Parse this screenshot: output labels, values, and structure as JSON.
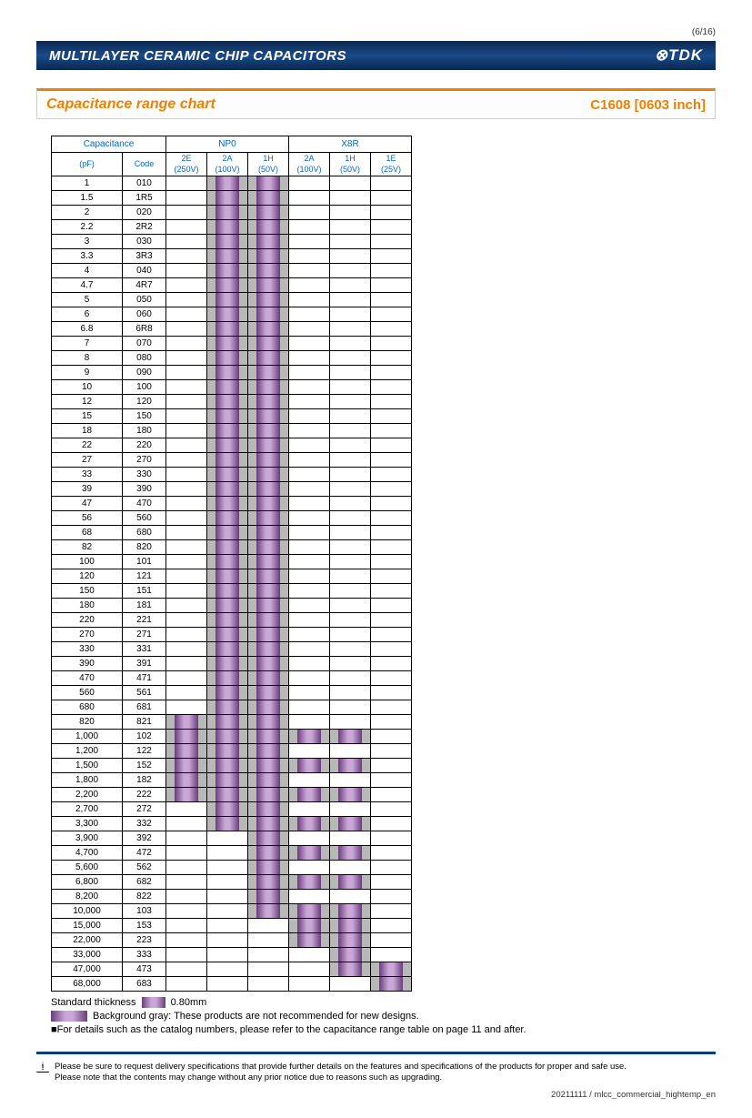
{
  "page_number": "(6/16)",
  "header": {
    "title": "MULTILAYER CERAMIC CHIP CAPACITORS",
    "logo": "⊗TDK"
  },
  "subheader": {
    "left": "Capacitance range chart",
    "right": "C1608 [0603 inch]"
  },
  "colors": {
    "bar_gradient_dark": "#6a3d7a",
    "bar_gradient_light": "#c9a8d8",
    "gray_bg": "#b8b8b8",
    "header_blue": "#0a3d7a",
    "orange": "#f08000",
    "link_blue": "#0066cc"
  },
  "th": {
    "capacitance": "Capacitance",
    "np0": "NP0",
    "x8r": "X8R",
    "pf": "(pF)",
    "code": "Code",
    "c2e": "2E",
    "c2e_v": "(250V)",
    "c2a": "2A",
    "c2a_v": "(100V)",
    "c1h": "1H",
    "c1h_v": "(50V)",
    "x2a": "2A",
    "x2a_v": "(100V)",
    "x1h": "1H",
    "x1h_v": "(50V)",
    "x1e": "1E",
    "x1e_v": "(25V)"
  },
  "rows": [
    {
      "pf": "1",
      "code": "010",
      "v": [
        0,
        2,
        2,
        0,
        0,
        0
      ]
    },
    {
      "pf": "1.5",
      "code": "1R5",
      "v": [
        0,
        2,
        2,
        0,
        0,
        0
      ]
    },
    {
      "pf": "2",
      "code": "020",
      "v": [
        0,
        2,
        2,
        0,
        0,
        0
      ]
    },
    {
      "pf": "2.2",
      "code": "2R2",
      "v": [
        0,
        2,
        2,
        0,
        0,
        0
      ]
    },
    {
      "pf": "3",
      "code": "030",
      "v": [
        0,
        2,
        2,
        0,
        0,
        0
      ]
    },
    {
      "pf": "3.3",
      "code": "3R3",
      "v": [
        0,
        2,
        2,
        0,
        0,
        0
      ]
    },
    {
      "pf": "4",
      "code": "040",
      "v": [
        0,
        2,
        2,
        0,
        0,
        0
      ]
    },
    {
      "pf": "4.7",
      "code": "4R7",
      "v": [
        0,
        2,
        2,
        0,
        0,
        0
      ]
    },
    {
      "pf": "5",
      "code": "050",
      "v": [
        0,
        2,
        2,
        0,
        0,
        0
      ]
    },
    {
      "pf": "6",
      "code": "060",
      "v": [
        0,
        2,
        2,
        0,
        0,
        0
      ]
    },
    {
      "pf": "6.8",
      "code": "6R8",
      "v": [
        0,
        2,
        2,
        0,
        0,
        0
      ]
    },
    {
      "pf": "7",
      "code": "070",
      "v": [
        0,
        2,
        2,
        0,
        0,
        0
      ]
    },
    {
      "pf": "8",
      "code": "080",
      "v": [
        0,
        2,
        2,
        0,
        0,
        0
      ]
    },
    {
      "pf": "9",
      "code": "090",
      "v": [
        0,
        2,
        2,
        0,
        0,
        0
      ]
    },
    {
      "pf": "10",
      "code": "100",
      "v": [
        0,
        2,
        2,
        0,
        0,
        0
      ]
    },
    {
      "pf": "12",
      "code": "120",
      "v": [
        0,
        2,
        2,
        0,
        0,
        0
      ]
    },
    {
      "pf": "15",
      "code": "150",
      "v": [
        0,
        2,
        2,
        0,
        0,
        0
      ]
    },
    {
      "pf": "18",
      "code": "180",
      "v": [
        0,
        2,
        2,
        0,
        0,
        0
      ]
    },
    {
      "pf": "22",
      "code": "220",
      "v": [
        0,
        2,
        2,
        0,
        0,
        0
      ]
    },
    {
      "pf": "27",
      "code": "270",
      "v": [
        0,
        2,
        2,
        0,
        0,
        0
      ]
    },
    {
      "pf": "33",
      "code": "330",
      "v": [
        0,
        2,
        2,
        0,
        0,
        0
      ]
    },
    {
      "pf": "39",
      "code": "390",
      "v": [
        0,
        2,
        2,
        0,
        0,
        0
      ]
    },
    {
      "pf": "47",
      "code": "470",
      "v": [
        0,
        2,
        2,
        0,
        0,
        0
      ]
    },
    {
      "pf": "56",
      "code": "560",
      "v": [
        0,
        2,
        2,
        0,
        0,
        0
      ]
    },
    {
      "pf": "68",
      "code": "680",
      "v": [
        0,
        2,
        2,
        0,
        0,
        0
      ]
    },
    {
      "pf": "82",
      "code": "820",
      "v": [
        0,
        2,
        2,
        0,
        0,
        0
      ]
    },
    {
      "pf": "100",
      "code": "101",
      "v": [
        0,
        2,
        2,
        0,
        0,
        0
      ]
    },
    {
      "pf": "120",
      "code": "121",
      "v": [
        0,
        2,
        2,
        0,
        0,
        0
      ]
    },
    {
      "pf": "150",
      "code": "151",
      "v": [
        0,
        2,
        2,
        0,
        0,
        0
      ]
    },
    {
      "pf": "180",
      "code": "181",
      "v": [
        0,
        2,
        2,
        0,
        0,
        0
      ]
    },
    {
      "pf": "220",
      "code": "221",
      "v": [
        0,
        2,
        2,
        0,
        0,
        0
      ]
    },
    {
      "pf": "270",
      "code": "271",
      "v": [
        0,
        2,
        2,
        0,
        0,
        0
      ]
    },
    {
      "pf": "330",
      "code": "331",
      "v": [
        0,
        2,
        2,
        0,
        0,
        0
      ]
    },
    {
      "pf": "390",
      "code": "391",
      "v": [
        0,
        2,
        2,
        0,
        0,
        0
      ]
    },
    {
      "pf": "470",
      "code": "471",
      "v": [
        0,
        2,
        2,
        0,
        0,
        0
      ]
    },
    {
      "pf": "560",
      "code": "561",
      "v": [
        0,
        2,
        2,
        0,
        0,
        0
      ]
    },
    {
      "pf": "680",
      "code": "681",
      "v": [
        0,
        2,
        2,
        0,
        0,
        0
      ]
    },
    {
      "pf": "820",
      "code": "821",
      "v": [
        2,
        2,
        2,
        0,
        0,
        0
      ]
    },
    {
      "pf": "1,000",
      "code": "102",
      "v": [
        2,
        2,
        2,
        2,
        2,
        0
      ]
    },
    {
      "pf": "1,200",
      "code": "122",
      "v": [
        2,
        2,
        2,
        0,
        0,
        0
      ]
    },
    {
      "pf": "1,500",
      "code": "152",
      "v": [
        2,
        2,
        2,
        2,
        2,
        0
      ]
    },
    {
      "pf": "1,800",
      "code": "182",
      "v": [
        2,
        2,
        2,
        0,
        0,
        0
      ]
    },
    {
      "pf": "2,200",
      "code": "222",
      "v": [
        2,
        2,
        2,
        2,
        2,
        0
      ]
    },
    {
      "pf": "2,700",
      "code": "272",
      "v": [
        0,
        2,
        2,
        0,
        0,
        0
      ]
    },
    {
      "pf": "3,300",
      "code": "332",
      "v": [
        0,
        2,
        2,
        2,
        2,
        0
      ]
    },
    {
      "pf": "3,900",
      "code": "392",
      "v": [
        0,
        0,
        2,
        0,
        0,
        0
      ]
    },
    {
      "pf": "4,700",
      "code": "472",
      "v": [
        0,
        0,
        2,
        2,
        2,
        0
      ]
    },
    {
      "pf": "5,600",
      "code": "562",
      "v": [
        0,
        0,
        2,
        0,
        0,
        0
      ]
    },
    {
      "pf": "6,800",
      "code": "682",
      "v": [
        0,
        0,
        2,
        2,
        2,
        0
      ]
    },
    {
      "pf": "8,200",
      "code": "822",
      "v": [
        0,
        0,
        2,
        0,
        0,
        0
      ]
    },
    {
      "pf": "10,000",
      "code": "103",
      "v": [
        0,
        0,
        2,
        2,
        2,
        0
      ]
    },
    {
      "pf": "15,000",
      "code": "153",
      "v": [
        0,
        0,
        0,
        2,
        2,
        0
      ]
    },
    {
      "pf": "22,000",
      "code": "223",
      "v": [
        0,
        0,
        0,
        2,
        2,
        0
      ]
    },
    {
      "pf": "33,000",
      "code": "333",
      "v": [
        0,
        0,
        0,
        0,
        2,
        0
      ]
    },
    {
      "pf": "47,000",
      "code": "473",
      "v": [
        0,
        0,
        0,
        0,
        2,
        2
      ]
    },
    {
      "pf": "68,000",
      "code": "683",
      "v": [
        0,
        0,
        0,
        0,
        0,
        2
      ]
    }
  ],
  "legend": {
    "std_thickness": "Standard thickness",
    "thickness_val": "0.80mm",
    "gray_note": "Background gray: These products are not recommended for new designs.",
    "detail_note": "■For details such as the catalog numbers, please refer to the capacitance range table on page 11 and after."
  },
  "footer": {
    "warn1": "Please be sure to request delivery specifications that provide further details on the features and specifications of the products for proper and safe use.",
    "warn2": "Please note that the contents may change without any prior notice due to reasons such as upgrading.",
    "docref": "20211111 / mlcc_commercial_hightemp_en"
  }
}
